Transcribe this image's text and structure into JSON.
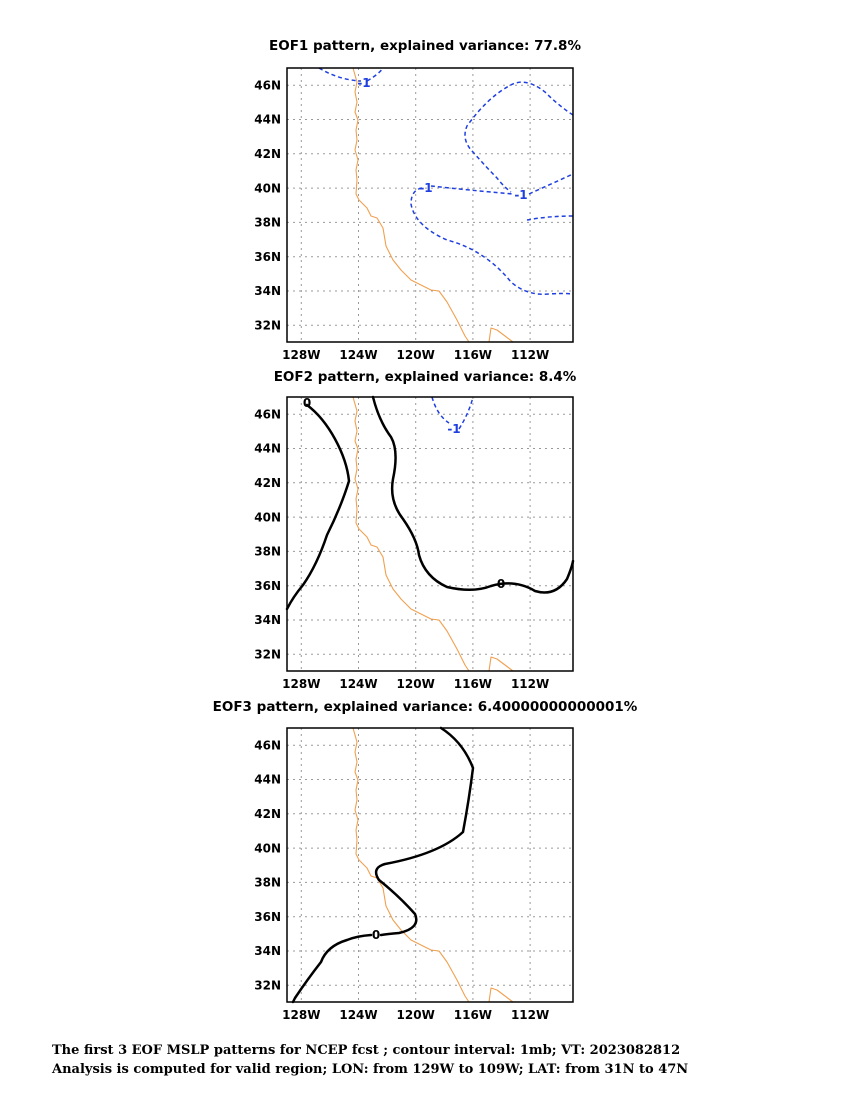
{
  "panels": [
    {
      "title": "EOF1 pattern, explained variance: 77.8%",
      "contour_labels": [
        "-1",
        "-1",
        "-1"
      ],
      "lat_ticks": [
        "46N",
        "44N",
        "42N",
        "40N",
        "38N",
        "36N",
        "34N",
        "32N"
      ],
      "lon_ticks": [
        "128W",
        "124W",
        "120W",
        "116W",
        "112W"
      ]
    },
    {
      "title": "EOF2 pattern, explained variance: 8.4%",
      "contour_labels": [
        "0",
        "0",
        "-1"
      ],
      "lat_ticks": [
        "46N",
        "44N",
        "42N",
        "40N",
        "38N",
        "36N",
        "34N",
        "32N"
      ],
      "lon_ticks": [
        "128W",
        "124W",
        "120W",
        "116W",
        "112W"
      ]
    },
    {
      "title": "EOF3 pattern, explained variance: 6.40000000000001%",
      "contour_labels": [
        "0"
      ],
      "lat_ticks": [
        "46N",
        "44N",
        "42N",
        "40N",
        "38N",
        "36N",
        "34N",
        "32N"
      ],
      "lon_ticks": [
        "128W",
        "124W",
        "120W",
        "116W",
        "112W"
      ]
    }
  ],
  "footer": {
    "line1": "The first 3 EOF MSLP patterns for NCEP fcst ; contour interval: 1mb; VT: 2023082812",
    "line2": "Analysis is computed for valid region; LON: from 129W to 109W; LAT: from 31N to 47N"
  },
  "colors": {
    "coastline": "#f0a050",
    "negative_contour": "#1f3fe0",
    "zero_contour": "#000000",
    "grid": "#9a9a9a"
  }
}
